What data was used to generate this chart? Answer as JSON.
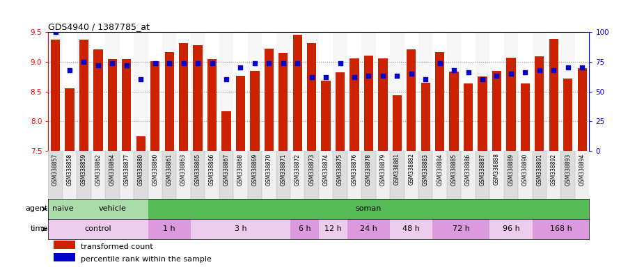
{
  "title": "GDS4940 / 1387785_at",
  "samples": [
    "GSM338857",
    "GSM338858",
    "GSM338859",
    "GSM338862",
    "GSM338864",
    "GSM338877",
    "GSM338880",
    "GSM338860",
    "GSM338861",
    "GSM338863",
    "GSM338865",
    "GSM338866",
    "GSM338867",
    "GSM338868",
    "GSM338869",
    "GSM338870",
    "GSM338871",
    "GSM338872",
    "GSM338873",
    "GSM338874",
    "GSM338875",
    "GSM338876",
    "GSM338878",
    "GSM338879",
    "GSM338881",
    "GSM338882",
    "GSM338883",
    "GSM338884",
    "GSM338885",
    "GSM338886",
    "GSM338887",
    "GSM338888",
    "GSM338889",
    "GSM338890",
    "GSM338891",
    "GSM338892",
    "GSM338893",
    "GSM338894"
  ],
  "bar_values": [
    9.37,
    8.55,
    9.37,
    9.21,
    9.04,
    9.04,
    7.75,
    9.01,
    9.16,
    9.31,
    9.28,
    9.05,
    8.17,
    8.76,
    8.85,
    9.22,
    9.15,
    9.45,
    9.31,
    8.68,
    8.82,
    9.06,
    9.1,
    9.06,
    8.44,
    9.21,
    8.65,
    9.16,
    8.83,
    8.64,
    8.75,
    8.84,
    9.07,
    8.63,
    9.09,
    9.38,
    8.72,
    8.89
  ],
  "percentile_pct": [
    100,
    68,
    75,
    72,
    74,
    72,
    60,
    74,
    74,
    74,
    74,
    74,
    60,
    70,
    74,
    74,
    74,
    74,
    62,
    62,
    74,
    62,
    63,
    63,
    63,
    65,
    60,
    74,
    68,
    66,
    60,
    63,
    65,
    66,
    68,
    68,
    70,
    70
  ],
  "ylim_left": [
    7.5,
    9.5
  ],
  "ylim_right": [
    0,
    100
  ],
  "bar_color": "#CC2200",
  "dot_color": "#0000CC",
  "agent_groups": [
    {
      "label": "naive",
      "start": 0,
      "end": 2,
      "color": "#AADDAA"
    },
    {
      "label": "vehicle",
      "start": 2,
      "end": 7,
      "color": "#AADDAA"
    },
    {
      "label": "soman",
      "start": 7,
      "end": 38,
      "color": "#55BB55"
    }
  ],
  "time_groups": [
    {
      "label": "control",
      "start": 0,
      "end": 7,
      "color": "#EECCEE"
    },
    {
      "label": "1 h",
      "start": 7,
      "end": 10,
      "color": "#DD99DD"
    },
    {
      "label": "3 h",
      "start": 10,
      "end": 17,
      "color": "#EECCEE"
    },
    {
      "label": "6 h",
      "start": 17,
      "end": 19,
      "color": "#DD99DD"
    },
    {
      "label": "12 h",
      "start": 19,
      "end": 21,
      "color": "#EECCEE"
    },
    {
      "label": "24 h",
      "start": 21,
      "end": 24,
      "color": "#DD99DD"
    },
    {
      "label": "48 h",
      "start": 24,
      "end": 27,
      "color": "#EECCEE"
    },
    {
      "label": "72 h",
      "start": 27,
      "end": 31,
      "color": "#DD99DD"
    },
    {
      "label": "96 h",
      "start": 31,
      "end": 34,
      "color": "#EECCEE"
    },
    {
      "label": "168 h",
      "start": 34,
      "end": 38,
      "color": "#DD99DD"
    }
  ]
}
